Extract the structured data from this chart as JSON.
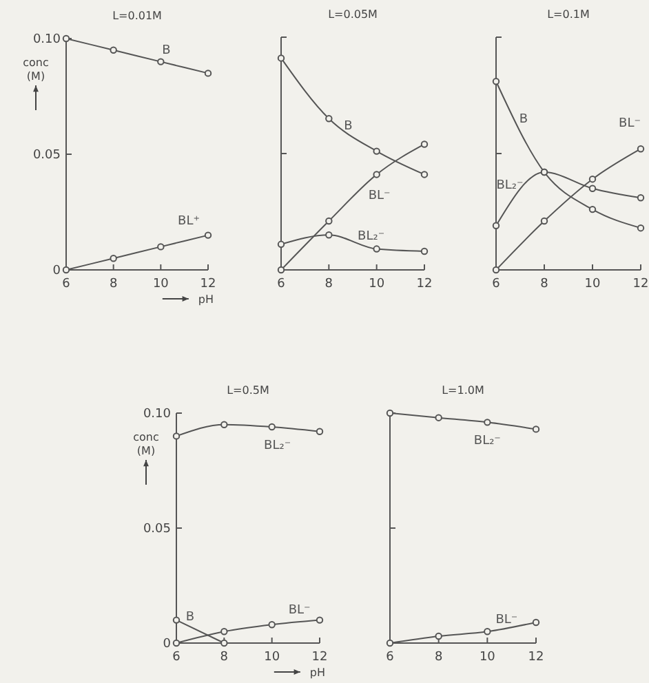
{
  "chart_data": [
    {
      "type": "line",
      "title": "L=0.01M",
      "xlabel": "pH",
      "ylabel": "conc (M)",
      "x": [
        6,
        8,
        10,
        12
      ],
      "xlim": [
        6,
        12
      ],
      "xticks": [
        6,
        8,
        10,
        12
      ],
      "ylim": [
        0,
        0.1
      ],
      "yticks": [
        0,
        0.05,
        {
          "value": 0.1,
          "label": "0.10"
        }
      ],
      "marker": "circle",
      "grid": false,
      "legend": false,
      "series": [
        {
          "name": "B",
          "color": "#555555",
          "values": [
            0.1,
            0.095,
            0.09,
            0.085
          ]
        },
        {
          "name": "BL⁺",
          "color": "#555555",
          "values": [
            0,
            0.005,
            0.01,
            0.015
          ]
        }
      ]
    },
    {
      "type": "line",
      "title": "L=0.05M",
      "x": [
        6,
        8,
        10,
        12
      ],
      "xlim": [
        6,
        12
      ],
      "xticks": [
        6,
        8,
        10,
        12
      ],
      "ylim": [
        0,
        0.1
      ],
      "yticks": [
        0,
        0.05,
        0.1
      ],
      "tick_labels": "x",
      "marker": "circle",
      "grid": false,
      "legend": false,
      "series": [
        {
          "name": "B",
          "color": "#555555",
          "values": [
            0.091,
            0.065,
            0.051,
            0.041
          ]
        },
        {
          "name": "BL⁻",
          "color": "#555555",
          "values": [
            0,
            0.021,
            0.041,
            0.054
          ]
        },
        {
          "name": "BL₂⁻",
          "color": "#555555",
          "values": [
            0.011,
            0.015,
            0.009,
            0.008
          ]
        }
      ]
    },
    {
      "type": "line",
      "title": "L=0.1M",
      "x": [
        6,
        8,
        10,
        12
      ],
      "xlim": [
        6,
        12
      ],
      "xticks": [
        6,
        8,
        10,
        12
      ],
      "ylim": [
        0,
        0.1
      ],
      "yticks": [
        0,
        0.05,
        0.1
      ],
      "tick_labels": "x",
      "marker": "circle",
      "grid": false,
      "legend": false,
      "series": [
        {
          "name": "B",
          "color": "#555555",
          "values": [
            0.081,
            0.042,
            0.026,
            0.018
          ]
        },
        {
          "name": "BL₂⁻",
          "color": "#555555",
          "values": [
            0.019,
            0.042,
            0.035,
            0.031
          ]
        },
        {
          "name": "BL⁻",
          "color": "#555555",
          "values": [
            0,
            0.021,
            0.039,
            0.052
          ]
        }
      ]
    },
    {
      "type": "line",
      "title": "L=0.5M",
      "xlabel": "pH",
      "ylabel": "conc (M)",
      "x": [
        6,
        8,
        10,
        12
      ],
      "xlim": [
        6,
        12
      ],
      "xticks": [
        6,
        8,
        10,
        12
      ],
      "ylim": [
        0,
        0.1
      ],
      "yticks": [
        0,
        0.05,
        {
          "value": 0.1,
          "label": "0.10"
        }
      ],
      "marker": "circle",
      "grid": false,
      "legend": false,
      "series": [
        {
          "name": "BL₂⁻",
          "color": "#555555",
          "values": [
            0.09,
            0.095,
            0.094,
            0.092
          ]
        },
        {
          "name": "B",
          "color": "#555555",
          "values": [
            0.01,
            0,
            null,
            null
          ]
        },
        {
          "name": "BL⁻",
          "color": "#555555",
          "values": [
            0,
            0.005,
            0.008,
            0.01
          ]
        }
      ]
    },
    {
      "type": "line",
      "title": "L=1.0M",
      "x": [
        6,
        8,
        10,
        12
      ],
      "xlim": [
        6,
        12
      ],
      "xticks": [
        6,
        8,
        10,
        12
      ],
      "ylim": [
        0,
        0.1
      ],
      "yticks": [
        0,
        0.05,
        0.1
      ],
      "tick_labels": "x",
      "marker": "circle",
      "grid": false,
      "legend": false,
      "series": [
        {
          "name": "BL₂⁻",
          "color": "#555555",
          "values": [
            0.1,
            0.098,
            0.096,
            0.093
          ]
        },
        {
          "name": "BL⁻",
          "color": "#555555",
          "values": [
            0,
            0.003,
            0.005,
            0.009
          ]
        }
      ]
    }
  ]
}
